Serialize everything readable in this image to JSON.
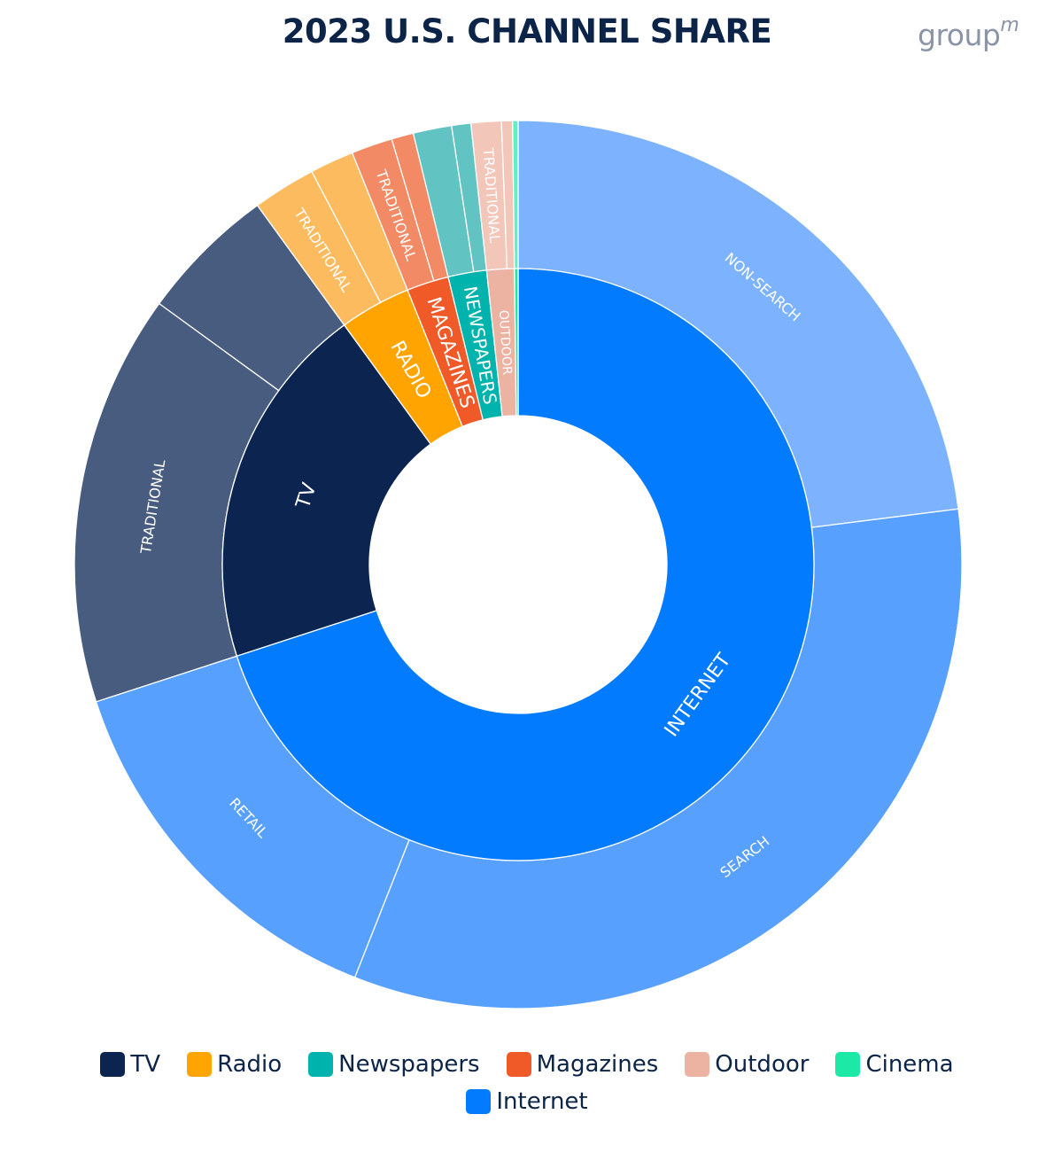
{
  "header": {
    "title": "2023 U.S. CHANNEL SHARE",
    "logo_text": "group",
    "logo_suffix": "m"
  },
  "chart_data": {
    "type": "sunburst",
    "title": "2023 U.S. CHANNEL SHARE",
    "legend_position": "bottom",
    "inner_ring": [
      {
        "name": "Internet",
        "label": "INTERNET",
        "value": 70.0,
        "color": "#037bfe"
      },
      {
        "name": "TV",
        "label": "TV",
        "value": 20.0,
        "color": "#0b2550"
      },
      {
        "name": "Radio",
        "label": "RADIO",
        "value": 3.9,
        "color": "#ffa400"
      },
      {
        "name": "Magazines",
        "label": "MAGAZINES",
        "value": 2.3,
        "color": "#f05a28"
      },
      {
        "name": "Newspapers",
        "label": "NEWSPAPERS",
        "value": 2.1,
        "color": "#00b3ac"
      },
      {
        "name": "Outdoor",
        "label": "OUTDOOR",
        "value": 1.5,
        "color": "#ecb3a2"
      },
      {
        "name": "Cinema",
        "label": "",
        "value": 0.2,
        "color": "#1de9a6"
      }
    ],
    "outer_ring": [
      {
        "parent": "Internet",
        "label": "NON-SEARCH",
        "value": 23.0,
        "color": "#7db3fe"
      },
      {
        "parent": "Internet",
        "label": "SEARCH",
        "value": 33.0,
        "color": "#58a0fe"
      },
      {
        "parent": "Internet",
        "label": "RETAIL",
        "value": 14.0,
        "color": "#58a0fe"
      },
      {
        "parent": "TV",
        "label": "TRADITIONAL",
        "value": 15.0,
        "color": "#485c7f"
      },
      {
        "parent": "TV",
        "label": "",
        "value": 5.0,
        "color": "#485c7f"
      },
      {
        "parent": "Radio",
        "label": "TRADITIONAL",
        "value": 2.3,
        "color": "#fdbb60"
      },
      {
        "parent": "Radio",
        "label": "",
        "value": 1.6,
        "color": "#fdbb60"
      },
      {
        "parent": "Magazines",
        "label": "TRADITIONAL",
        "value": 1.5,
        "color": "#f28a66"
      },
      {
        "parent": "Magazines",
        "label": "",
        "value": 0.8,
        "color": "#f28a66"
      },
      {
        "parent": "Newspapers",
        "label": "",
        "value": 1.4,
        "color": "#62c4c2"
      },
      {
        "parent": "Newspapers",
        "label": "",
        "value": 0.7,
        "color": "#62c4c2"
      },
      {
        "parent": "Outdoor",
        "label": "TRADITIONAL",
        "value": 1.1,
        "color": "#f3c6ba"
      },
      {
        "parent": "Outdoor",
        "label": "",
        "value": 0.4,
        "color": "#f3c6ba"
      },
      {
        "parent": "Cinema",
        "label": "",
        "value": 0.2,
        "color": "#5ff0c4"
      }
    ],
    "legend": [
      {
        "name": "TV",
        "color": "#0b2550"
      },
      {
        "name": "Radio",
        "color": "#ffa400"
      },
      {
        "name": "Newspapers",
        "color": "#00b3ac"
      },
      {
        "name": "Magazines",
        "color": "#f05a28"
      },
      {
        "name": "Outdoor",
        "color": "#ecb3a2"
      },
      {
        "name": "Cinema",
        "color": "#1de9a6"
      },
      {
        "name": "Internet",
        "color": "#037bfe"
      }
    ]
  }
}
